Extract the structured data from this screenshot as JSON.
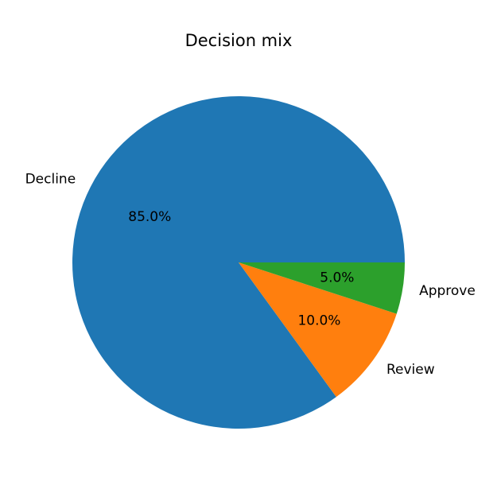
{
  "chart_data": {
    "type": "pie",
    "title": "Decision mix",
    "categories": [
      "Decline",
      "Review",
      "Approve"
    ],
    "values": [
      85.0,
      10.0,
      5.0
    ],
    "percent_labels": [
      "85.0%",
      "10.0%",
      "5.0%"
    ],
    "colors": [
      "#1f77b4",
      "#ff7f0e",
      "#2ca02c"
    ],
    "start_angle_deg": 0,
    "direction": "counterclockwise",
    "legend": "none"
  }
}
